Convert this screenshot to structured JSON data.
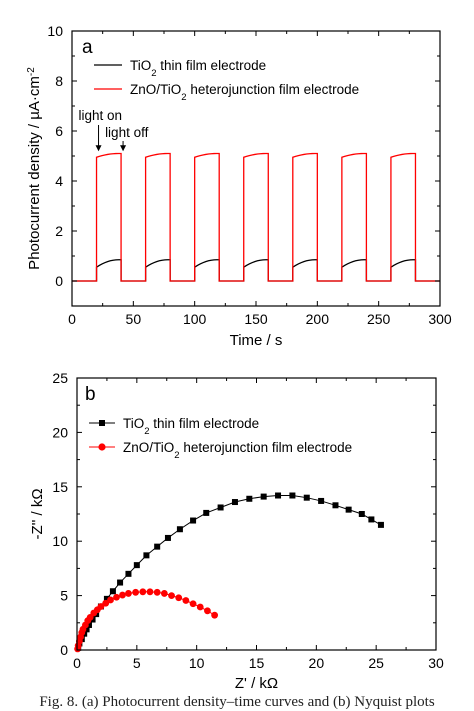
{
  "caption": "Fig. 8. (a) Photocurrent density–time curves and (b) Nyquist plots",
  "chart_data": [
    {
      "type": "line",
      "panel_label": "a",
      "xlabel": "Time / s",
      "ylabel_parts": [
        "Photocurrent density / µA·cm",
        "-2"
      ],
      "xlim": [
        0,
        300
      ],
      "ylim": [
        -1,
        10
      ],
      "xticks": [
        0,
        50,
        100,
        150,
        200,
        250,
        300
      ],
      "yticks": [
        0,
        2,
        4,
        6,
        8,
        10
      ],
      "legend_position": "top-left",
      "annotations": [
        {
          "text": "light on",
          "x": 20,
          "y": 5.15
        },
        {
          "text": "light off",
          "x": 40,
          "y": 5.15
        }
      ],
      "light_on_intervals": [
        [
          20,
          40
        ],
        [
          60,
          80
        ],
        [
          100,
          120
        ],
        [
          140,
          160
        ],
        [
          180,
          200
        ],
        [
          220,
          240
        ],
        [
          260,
          280
        ]
      ],
      "series": [
        {
          "name_parts": [
            "TiO",
            "2",
            " thin film electrode"
          ],
          "color": "#000000",
          "dark": 0.0,
          "rise_start": 0.55,
          "plateau": 0.85
        },
        {
          "name_parts": [
            "ZnO/TiO",
            "2",
            " heterojunction film electrode"
          ],
          "color": "#ff0000",
          "dark": 0.0,
          "rise_start": 4.95,
          "plateau": 5.1
        }
      ]
    },
    {
      "type": "scatter",
      "panel_label": "b",
      "xlabel": "Z' / kΩ",
      "ylabel": "-Z'' / kΩ",
      "xlim": [
        0,
        30
      ],
      "ylim": [
        0,
        25
      ],
      "xticks": [
        0,
        5,
        10,
        15,
        20,
        25,
        30
      ],
      "yticks": [
        0,
        5,
        10,
        15,
        20,
        25
      ],
      "legend_position": "top-left",
      "series": [
        {
          "name_parts": [
            "TiO",
            "2",
            " thin film electrode"
          ],
          "color": "#000000",
          "marker": "square",
          "points": [
            [
              0.1,
              0.2
            ],
            [
              0.2,
              0.6
            ],
            [
              0.4,
              1.0
            ],
            [
              0.6,
              1.5
            ],
            [
              0.8,
              1.9
            ],
            [
              1.0,
              2.3
            ],
            [
              1.3,
              2.8
            ],
            [
              1.6,
              3.3
            ],
            [
              2.0,
              4.0
            ],
            [
              2.5,
              4.7
            ],
            [
              3.0,
              5.4
            ],
            [
              3.6,
              6.2
            ],
            [
              4.3,
              7.0
            ],
            [
              5.0,
              7.8
            ],
            [
              5.8,
              8.7
            ],
            [
              6.7,
              9.5
            ],
            [
              7.6,
              10.3
            ],
            [
              8.6,
              11.1
            ],
            [
              9.7,
              11.9
            ],
            [
              10.8,
              12.6
            ],
            [
              12.0,
              13.1
            ],
            [
              13.2,
              13.6
            ],
            [
              14.4,
              13.9
            ],
            [
              15.6,
              14.1
            ],
            [
              16.8,
              14.2
            ],
            [
              18.0,
              14.2
            ],
            [
              19.2,
              14.0
            ],
            [
              20.4,
              13.7
            ],
            [
              21.6,
              13.3
            ],
            [
              22.7,
              12.9
            ],
            [
              23.8,
              12.5
            ],
            [
              24.6,
              12.0
            ],
            [
              25.4,
              11.5
            ]
          ]
        },
        {
          "name_parts": [
            "ZnO/TiO",
            "2",
            " heterojunction film electrode"
          ],
          "color": "#ff0000",
          "marker": "circle",
          "points": [
            [
              0.05,
              0.1
            ],
            [
              0.1,
              0.4
            ],
            [
              0.2,
              0.8
            ],
            [
              0.3,
              1.2
            ],
            [
              0.4,
              1.6
            ],
            [
              0.5,
              1.9
            ],
            [
              0.7,
              2.3
            ],
            [
              0.9,
              2.7
            ],
            [
              1.1,
              3.0
            ],
            [
              1.4,
              3.4
            ],
            [
              1.7,
              3.7
            ],
            [
              2.0,
              4.0
            ],
            [
              2.4,
              4.3
            ],
            [
              2.8,
              4.6
            ],
            [
              3.3,
              4.85
            ],
            [
              3.8,
              5.05
            ],
            [
              4.3,
              5.2
            ],
            [
              4.9,
              5.3
            ],
            [
              5.5,
              5.35
            ],
            [
              6.1,
              5.35
            ],
            [
              6.7,
              5.3
            ],
            [
              7.3,
              5.2
            ],
            [
              7.9,
              5.0
            ],
            [
              8.5,
              4.8
            ],
            [
              9.1,
              4.55
            ],
            [
              9.7,
              4.25
            ],
            [
              10.3,
              3.95
            ],
            [
              10.9,
              3.6
            ],
            [
              11.5,
              3.2
            ]
          ]
        }
      ]
    }
  ]
}
